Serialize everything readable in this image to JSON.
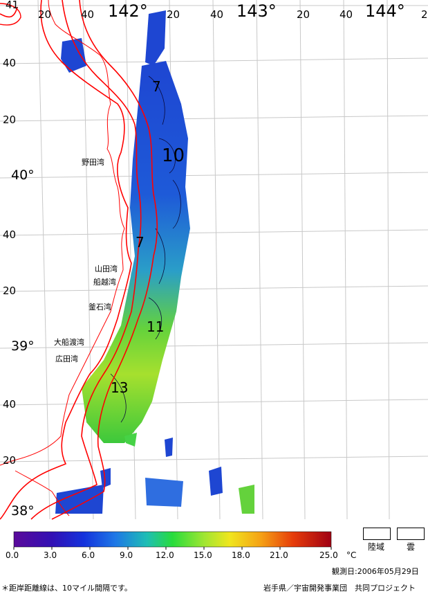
{
  "map": {
    "lon_labels_major": [
      "142°",
      "143°",
      "144°"
    ],
    "lon_labels_minor": [
      "20",
      "40",
      "20",
      "40",
      "20",
      "40",
      "20",
      "40",
      "2"
    ],
    "lat_labels_major": [
      "40°",
      "39°",
      "38°"
    ],
    "lat_labels_minor": [
      "40",
      "20",
      "40",
      "20",
      "40",
      "20"
    ],
    "top_left_label": "41",
    "bays": [
      "野田湾",
      "山田湾",
      "船越湾",
      "釜石湾",
      "大船渡湾",
      "広田湾"
    ],
    "isotherms": [
      "7",
      "10",
      "7",
      "11",
      "13"
    ],
    "colors": {
      "coastline": "#ff0000",
      "grid": "#c8c8c8",
      "land": "#ffffff"
    }
  },
  "legend": {
    "scale_min": 0.0,
    "scale_max": 25.0,
    "ticks": [
      "0.0",
      "3.0",
      "6.0",
      "9.0",
      "12.0",
      "15.0",
      "18.0",
      "21.0",
      "25.0"
    ],
    "unit": "°C",
    "land_label": "陸域",
    "cloud_label": "雲"
  },
  "footer": {
    "observation_date": "観測日:2006年05月29日",
    "note": "＊距岸距離線は、10マイル間隔です。",
    "credit": "岩手県／宇宙開発事業団　共同プロジェクト"
  }
}
